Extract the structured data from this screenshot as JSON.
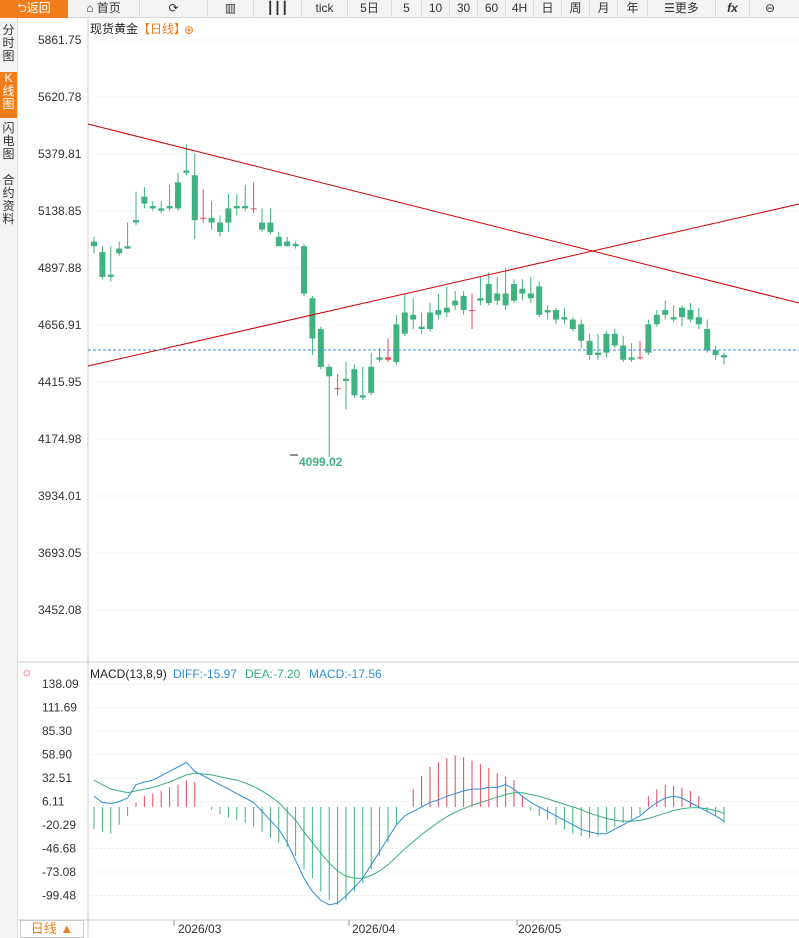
{
  "toolbar": {
    "back": "返回",
    "home": "首页",
    "tick": "tick",
    "five_day": "5日",
    "p5": "5",
    "p10": "10",
    "p30": "30",
    "p60": "60",
    "p4h": "4H",
    "day": "日",
    "week": "周",
    "month": "月",
    "year": "年",
    "more": "更多",
    "fx": "fx"
  },
  "side_tabs": [
    "分时图",
    "K线图",
    "闪电图",
    "合约资料"
  ],
  "side_active": 1,
  "header": {
    "instrument": "现货黄金",
    "period_tag": "【日线】",
    "add_symbol": "⊕"
  },
  "colors": {
    "up": "#e8465a",
    "down": "#3fb27f",
    "trend": "#cc0000",
    "dashed": "#3a8fd0",
    "accent": "#f07d1a",
    "diff": "#2d8fd6",
    "dea": "#38b07a"
  },
  "price_axis": [
    "5861.75",
    "5620.78",
    "5379.81",
    "5138.85",
    "4897.88",
    "4656.91",
    "4415.95",
    "4174.98",
    "3934.01",
    "3693.05",
    "3452.08"
  ],
  "low_label": "4099.02",
  "macd": {
    "title": "MACD(13,8,9)",
    "diff": "DIFF:-15.97",
    "dea": "DEA:-7.20",
    "macd": "MACD:-17.56",
    "axis": [
      "138.09",
      "111.69",
      "85.30",
      "58.90",
      "32.51",
      "6.11",
      "-20.29",
      "-46.68",
      "-73.08",
      "-99.48"
    ]
  },
  "date_axis": [
    "2026/03",
    "2026/04",
    "2026/05"
  ],
  "footer_period": "日线 ▲",
  "candles": [
    [
      5010,
      5030,
      4990,
      4960
    ],
    [
      4965,
      4990,
      4860,
      4850
    ],
    [
      4870,
      4990,
      4860,
      4840
    ],
    [
      4980,
      5010,
      4960,
      4950
    ],
    [
      4990,
      5090,
      4980,
      4980
    ],
    [
      5100,
      5220,
      5090,
      5080
    ],
    [
      5200,
      5240,
      5170,
      5150
    ],
    [
      5160,
      5180,
      5150,
      5140
    ],
    [
      5150,
      5180,
      5140,
      5130
    ],
    [
      5160,
      5250,
      5150,
      5140
    ],
    [
      5260,
      5300,
      5150,
      5140
    ],
    [
      5310,
      5420,
      5300,
      5290
    ],
    [
      5290,
      5380,
      5100,
      5020
    ],
    [
      5110,
      5230,
      5110,
      5090
    ],
    [
      5110,
      5180,
      5090,
      5060
    ],
    [
      5090,
      5120,
      5050,
      5030
    ],
    [
      5150,
      5210,
      5090,
      5050
    ],
    [
      5160,
      5210,
      5150,
      5120
    ],
    [
      5160,
      5250,
      5150,
      5140
    ],
    [
      5150,
      5260,
      5150,
      5130
    ],
    [
      5090,
      5150,
      5060,
      5050
    ],
    [
      5090,
      5150,
      5050,
      5040
    ],
    [
      5030,
      5050,
      4990,
      4990
    ],
    [
      5010,
      5030,
      4990,
      4990
    ],
    [
      5000,
      5010,
      4990,
      4980
    ],
    [
      4990,
      5000,
      4790,
      4780
    ],
    [
      4770,
      4780,
      4600,
      4530
    ],
    [
      4640,
      4650,
      4480,
      4470
    ],
    [
      4480,
      4490,
      4440,
      4099
    ],
    [
      4390,
      4450,
      4390,
      4360
    ],
    [
      4430,
      4500,
      4420,
      4300
    ],
    [
      4470,
      4490,
      4360,
      4350
    ],
    [
      4360,
      4480,
      4350,
      4340
    ],
    [
      4480,
      4540,
      4370,
      4360
    ],
    [
      4520,
      4560,
      4510,
      4500
    ],
    [
      4510,
      4600,
      4520,
      4500
    ],
    [
      4660,
      4700,
      4500,
      4490
    ],
    [
      4710,
      4790,
      4620,
      4610
    ],
    [
      4700,
      4770,
      4680,
      4640
    ],
    [
      4650,
      4710,
      4640,
      4620
    ],
    [
      4710,
      4750,
      4640,
      4630
    ],
    [
      4720,
      4790,
      4700,
      4680
    ],
    [
      4730,
      4820,
      4710,
      4690
    ],
    [
      4760,
      4800,
      4740,
      4720
    ],
    [
      4780,
      4800,
      4720,
      4700
    ],
    [
      4720,
      4790,
      4720,
      4640
    ],
    [
      4770,
      4860,
      4760,
      4740
    ],
    [
      4830,
      4880,
      4750,
      4740
    ],
    [
      4790,
      4860,
      4760,
      4740
    ],
    [
      4790,
      4900,
      4740,
      4720
    ],
    [
      4830,
      4850,
      4760,
      4750
    ],
    [
      4810,
      4850,
      4790,
      4760
    ],
    [
      4790,
      4860,
      4770,
      4750
    ],
    [
      4820,
      4840,
      4700,
      4690
    ],
    [
      4720,
      4740,
      4710,
      4680
    ],
    [
      4720,
      4730,
      4680,
      4660
    ],
    [
      4690,
      4730,
      4680,
      4660
    ],
    [
      4680,
      4690,
      4640,
      4630
    ],
    [
      4660,
      4680,
      4590,
      4560
    ],
    [
      4590,
      4620,
      4530,
      4510
    ],
    [
      4540,
      4620,
      4530,
      4510
    ],
    [
      4620,
      4630,
      4540,
      4520
    ],
    [
      4620,
      4640,
      4570,
      4560
    ],
    [
      4570,
      4610,
      4510,
      4500
    ],
    [
      4520,
      4580,
      4510,
      4500
    ],
    [
      4520,
      4590,
      4520,
      4510
    ],
    [
      4660,
      4680,
      4540,
      4530
    ],
    [
      4700,
      4720,
      4660,
      4650
    ],
    [
      4720,
      4760,
      4700,
      4680
    ],
    [
      4690,
      4740,
      4680,
      4670
    ],
    [
      4730,
      4740,
      4690,
      4650
    ],
    [
      4720,
      4750,
      4680,
      4670
    ],
    [
      4690,
      4730,
      4660,
      4640
    ],
    [
      4640,
      4680,
      4550,
      4540
    ],
    [
      4550,
      4570,
      4530,
      4510
    ],
    [
      4530,
      4540,
      4520,
      4490
    ]
  ],
  "macd_hist": [
    -25,
    -28,
    -30,
    -20,
    -10,
    5,
    12,
    15,
    18,
    22,
    25,
    30,
    28,
    0,
    -3,
    -8,
    -12,
    -15,
    -18,
    -22,
    -28,
    -35,
    -40,
    -45,
    -55,
    -70,
    -80,
    -95,
    -105,
    -110,
    -105,
    -95,
    -85,
    -70,
    -55,
    -40,
    -20,
    0,
    20,
    35,
    45,
    50,
    55,
    58,
    56,
    52,
    48,
    44,
    38,
    34,
    30,
    12,
    -4,
    -10,
    -14,
    -20,
    -25,
    -30,
    -33,
    -35,
    -33,
    -28,
    -22,
    -18,
    -14,
    -8,
    12,
    20,
    25,
    24,
    22,
    18,
    12,
    -6,
    -10,
    -18
  ],
  "macd_diff": [
    12,
    5,
    4,
    6,
    10,
    25,
    28,
    30,
    35,
    40,
    45,
    50,
    40,
    35,
    30,
    25,
    20,
    15,
    10,
    5,
    -5,
    -15,
    -25,
    -40,
    -60,
    -80,
    -95,
    -105,
    -110,
    -108,
    -100,
    -90,
    -80,
    -65,
    -50,
    -35,
    -20,
    -10,
    -5,
    0,
    5,
    8,
    12,
    15,
    18,
    20,
    20,
    22,
    22,
    25,
    20,
    12,
    5,
    0,
    -5,
    -10,
    -15,
    -20,
    -25,
    -28,
    -30,
    -30,
    -25,
    -20,
    -15,
    -10,
    -2,
    5,
    10,
    12,
    10,
    5,
    0,
    -5,
    -10,
    -16
  ],
  "macd_dea": [
    30,
    25,
    20,
    18,
    16,
    18,
    20,
    22,
    25,
    28,
    32,
    36,
    38,
    37,
    36,
    34,
    32,
    30,
    27,
    23,
    18,
    12,
    5,
    -5,
    -15,
    -28,
    -40,
    -52,
    -63,
    -72,
    -78,
    -80,
    -80,
    -77,
    -72,
    -65,
    -56,
    -47,
    -39,
    -31,
    -24,
    -17,
    -11,
    -6,
    -2,
    2,
    5,
    8,
    11,
    14,
    16,
    16,
    14,
    12,
    9,
    6,
    3,
    0,
    -3,
    -7,
    -10,
    -13,
    -15,
    -16,
    -16,
    -15,
    -13,
    -10,
    -7,
    -4,
    -2,
    -1,
    -1,
    -2,
    -4,
    -7
  ]
}
